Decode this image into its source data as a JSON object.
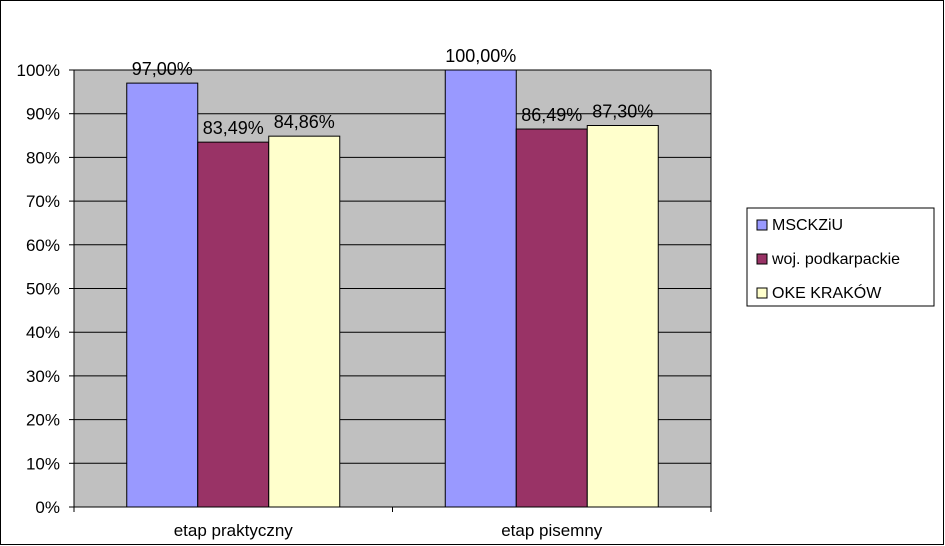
{
  "chart_data": {
    "type": "bar",
    "title": "",
    "xlabel": "",
    "ylabel": "",
    "categories": [
      "etap praktyczny",
      "etap pisemny"
    ],
    "series": [
      {
        "name": "MSCKZiU",
        "values": [
          97.0,
          100.0
        ],
        "labels": [
          "97,00%",
          "100,00%"
        ],
        "color": "#9999ff"
      },
      {
        "name": "woj. podkarpackie",
        "values": [
          83.49,
          86.49
        ],
        "labels": [
          "83,49%",
          "86,49%"
        ],
        "color": "#993366"
      },
      {
        "name": "OKE KRAKÓW",
        "values": [
          84.86,
          87.3
        ],
        "labels": [
          "84,86%",
          "87,30%"
        ],
        "color": "#ffffcc"
      }
    ],
    "ylim": [
      0,
      100
    ],
    "yticks": [
      0,
      10,
      20,
      30,
      40,
      50,
      60,
      70,
      80,
      90,
      100
    ],
    "ytick_labels": [
      "0%",
      "10%",
      "20%",
      "30%",
      "40%",
      "50%",
      "60%",
      "70%",
      "80%",
      "90%",
      "100%"
    ],
    "grid": true,
    "plot_background": "#c0c0c0",
    "legend_position": "right"
  }
}
